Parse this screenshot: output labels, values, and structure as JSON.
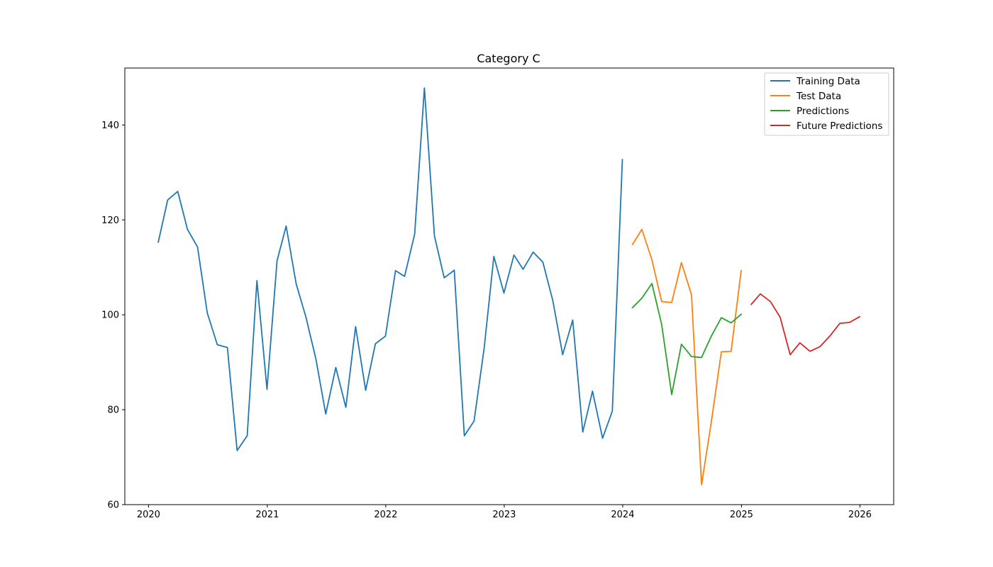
{
  "chart_data": {
    "type": "line",
    "title": "Category C",
    "xlabel": "",
    "ylabel": "",
    "x_axis": "date",
    "xlim": [
      "2019-10-20",
      "2026-04-15"
    ],
    "ylim": [
      60,
      152
    ],
    "x_ticks": [
      "2020-01-01",
      "2021-01-01",
      "2022-01-01",
      "2023-01-01",
      "2024-01-01",
      "2025-01-01",
      "2026-01-01"
    ],
    "x_tick_labels": [
      "2020",
      "2021",
      "2022",
      "2023",
      "2024",
      "2025",
      "2026"
    ],
    "y_ticks": [
      60,
      80,
      100,
      120,
      140
    ],
    "y_tick_labels": [
      "60",
      "80",
      "100",
      "120",
      "140"
    ],
    "grid": false,
    "legend": {
      "position": "top-right"
    },
    "series": [
      {
        "name": "Training Data",
        "color": "#1f77b4",
        "x": [
          "2020-01-31",
          "2020-02-29",
          "2020-03-31",
          "2020-04-30",
          "2020-05-31",
          "2020-06-30",
          "2020-07-31",
          "2020-08-31",
          "2020-09-30",
          "2020-10-31",
          "2020-11-30",
          "2020-12-31",
          "2021-01-31",
          "2021-02-28",
          "2021-03-31",
          "2021-04-30",
          "2021-05-31",
          "2021-06-30",
          "2021-07-31",
          "2021-08-31",
          "2021-09-30",
          "2021-10-31",
          "2021-11-30",
          "2021-12-31",
          "2022-01-31",
          "2022-02-28",
          "2022-03-31",
          "2022-04-30",
          "2022-05-31",
          "2022-06-30",
          "2022-07-31",
          "2022-08-31",
          "2022-09-30",
          "2022-10-31",
          "2022-11-30",
          "2022-12-31",
          "2023-01-31",
          "2023-02-28",
          "2023-03-31",
          "2023-04-30",
          "2023-05-31",
          "2023-06-30",
          "2023-07-31",
          "2023-08-31",
          "2023-09-30",
          "2023-10-31",
          "2023-11-30",
          "2023-12-31"
        ],
        "y": [
          115.3,
          124.2,
          126.0,
          118.0,
          114.3,
          100.4,
          93.7,
          93.1,
          71.4,
          74.5,
          107.2,
          84.3,
          111.4,
          118.7,
          106.5,
          99.5,
          90.6,
          79.1,
          88.9,
          80.5,
          97.5,
          84.1,
          93.9,
          95.5,
          109.3,
          108.1,
          117.0,
          147.8,
          116.6,
          107.8,
          109.4,
          74.5,
          77.6,
          92.9,
          112.3,
          104.6,
          112.6,
          109.6,
          113.2,
          111.1,
          102.9,
          91.6,
          98.9,
          75.3,
          83.9,
          74.0,
          79.7,
          132.7
        ]
      },
      {
        "name": "Test Data",
        "color": "#ff7f0e",
        "x": [
          "2024-01-31",
          "2024-02-29",
          "2024-03-31",
          "2024-04-30",
          "2024-05-31",
          "2024-06-30",
          "2024-07-31",
          "2024-08-31",
          "2024-09-30",
          "2024-10-31",
          "2024-11-30",
          "2024-12-31"
        ],
        "y": [
          114.8,
          118.0,
          111.6,
          102.8,
          102.6,
          111.0,
          104.2,
          64.2,
          77.4,
          92.2,
          92.3,
          109.3
        ]
      },
      {
        "name": "Predictions",
        "color": "#2ca02c",
        "x": [
          "2024-01-31",
          "2024-02-29",
          "2024-03-31",
          "2024-04-30",
          "2024-05-31",
          "2024-06-30",
          "2024-07-31",
          "2024-08-31",
          "2024-09-30",
          "2024-10-31",
          "2024-11-30",
          "2024-12-31"
        ],
        "y": [
          101.5,
          103.5,
          106.6,
          98.0,
          83.2,
          93.8,
          91.2,
          91.0,
          95.5,
          99.4,
          98.3,
          100.1
        ]
      },
      {
        "name": "Future Predictions",
        "color": "#d62728",
        "x": [
          "2025-01-31",
          "2025-02-28",
          "2025-03-31",
          "2025-04-30",
          "2025-05-31",
          "2025-06-30",
          "2025-07-31",
          "2025-08-31",
          "2025-09-30",
          "2025-10-31",
          "2025-11-30",
          "2025-12-31"
        ],
        "y": [
          102.2,
          104.4,
          102.8,
          99.5,
          91.6,
          94.1,
          92.3,
          93.3,
          95.5,
          98.2,
          98.4,
          99.6
        ]
      }
    ]
  }
}
